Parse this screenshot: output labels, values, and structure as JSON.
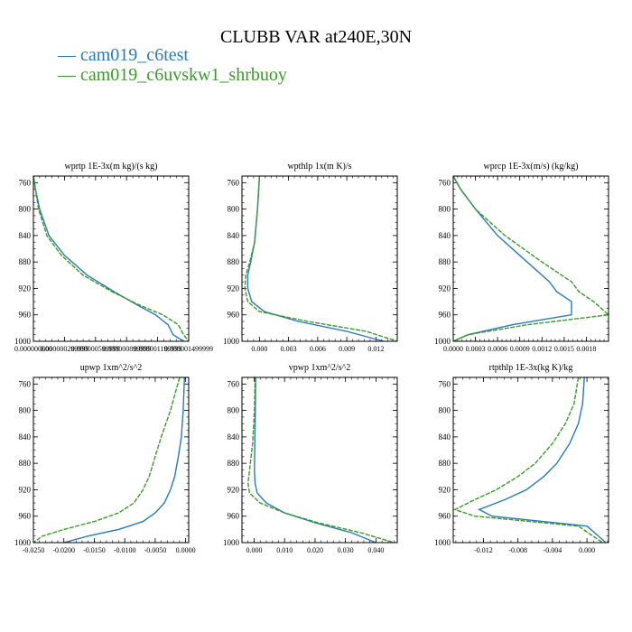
{
  "figure": {
    "title": "CLUBB VAR at240E,30N",
    "legend": [
      {
        "label": "cam019_c6test",
        "color": "#2a7ab9"
      },
      {
        "label": "cam019_c6uvskw1_shrbuoy",
        "color": "#3a9a28"
      }
    ]
  },
  "chart_data": [
    {
      "type": "line",
      "title": "wprtp  1E-3x(m kg)/(s kg)",
      "ylim": [
        1000,
        750
      ],
      "yticks": [
        760,
        800,
        840,
        880,
        920,
        960,
        1000
      ],
      "xlim": [
        0.0,
        1.5e-06
      ],
      "xticks": [
        0.0,
        3e-07,
        6e-07,
        9e-07,
        1.2e-06,
        1.5e-06
      ],
      "xtick_labels": [
        "0.000000000",
        "0.000000299999",
        "0.000000599999",
        "0.000000899999",
        "0.000001199999",
        "0.000001499999"
      ],
      "series": [
        {
          "name": "cam019_c6test",
          "x": [
            0.0,
            2e-08,
            6e-08,
            1.5e-07,
            3e-07,
            5.2e-07,
            7.8e-07,
            1e-06,
            1.18e-06,
            1.3e-06,
            1.35e-06,
            1.45e-06
          ],
          "y": [
            750,
            770,
            800,
            840,
            870,
            900,
            925,
            945,
            960,
            975,
            990,
            1000
          ]
        },
        {
          "name": "cam019_c6uvskw1_shrbuoy",
          "x": [
            0.0,
            2e-08,
            5e-08,
            1.3e-07,
            2.7e-07,
            4.8e-07,
            7.6e-07,
            1.02e-06,
            1.25e-06,
            1.4e-06,
            1.45e-06,
            1.5e-06
          ],
          "y": [
            750,
            770,
            800,
            840,
            870,
            900,
            925,
            945,
            960,
            975,
            990,
            1000
          ]
        }
      ]
    },
    {
      "type": "line",
      "title": "wpthlp  1x(m K)/s",
      "ylim": [
        1000,
        750
      ],
      "yticks": [
        760,
        800,
        840,
        880,
        920,
        960,
        1000
      ],
      "xlim": [
        -0.0018,
        0.0142
      ],
      "xticks": [
        0.0,
        0.003,
        0.006,
        0.009,
        0.012
      ],
      "xtick_labels": [
        "0.000",
        "0.003",
        "0.006",
        "0.009",
        "0.012"
      ],
      "series": [
        {
          "name": "cam019_c6test",
          "x": [
            0.0,
            -0.0002,
            -0.0005,
            -0.0009,
            -0.0012,
            -0.0012,
            -0.0008,
            0.0005,
            0.004,
            0.009,
            0.0128
          ],
          "y": [
            750,
            800,
            850,
            880,
            900,
            920,
            940,
            955,
            970,
            985,
            1000
          ]
        },
        {
          "name": "cam019_c6uvskw1_shrbuoy",
          "x": [
            0.0,
            -0.0002,
            -0.0005,
            -0.001,
            -0.0014,
            -0.0015,
            -0.0012,
            0.0,
            0.005,
            0.011,
            0.0142
          ],
          "y": [
            750,
            800,
            850,
            880,
            900,
            920,
            940,
            955,
            970,
            985,
            1000
          ]
        }
      ]
    },
    {
      "type": "line",
      "title": "wprcp  1E-3x(m/s) (kg/kg)",
      "ylim": [
        1000,
        750
      ],
      "yticks": [
        760,
        800,
        840,
        880,
        920,
        960,
        1000
      ],
      "xlim": [
        0.0,
        0.0021
      ],
      "xticks": [
        0.0,
        0.0003,
        0.0006,
        0.0009,
        0.0012,
        0.0015,
        0.0018
      ],
      "xtick_labels": [
        "0.0000",
        "0.0003",
        "0.0006",
        "0.0009",
        "0.0012",
        "0.0015",
        "0.0018"
      ],
      "series": [
        {
          "name": "cam019_c6test",
          "x": [
            0.0,
            0.0001,
            0.0003,
            0.0006,
            0.001,
            0.0013,
            0.0014,
            0.0016,
            0.0016,
            0.0008,
            0.0002,
            0.0
          ],
          "y": [
            750,
            770,
            800,
            840,
            880,
            910,
            925,
            940,
            960,
            975,
            990,
            1000
          ]
        },
        {
          "name": "cam019_c6uvskw1_shrbuoy",
          "x": [
            0.0,
            0.0001,
            0.0003,
            0.0007,
            0.0012,
            0.0016,
            0.0017,
            0.0019,
            0.0021,
            0.001,
            0.0002,
            0.0
          ],
          "y": [
            750,
            770,
            800,
            840,
            880,
            910,
            925,
            940,
            960,
            975,
            990,
            1000
          ]
        }
      ]
    },
    {
      "type": "line",
      "title": "upwp  1xm^2/s^2",
      "ylim": [
        1000,
        750
      ],
      "yticks": [
        760,
        800,
        840,
        880,
        920,
        960,
        1000
      ],
      "xlim": [
        -0.025,
        0.0005
      ],
      "xticks": [
        -0.025,
        -0.02,
        -0.015,
        -0.01,
        -0.005,
        0.0
      ],
      "xtick_labels": [
        "-0.0250",
        "-0.0200",
        "-0.0150",
        "-0.0100",
        "-0.0050",
        "0.0000"
      ],
      "series": [
        {
          "name": "cam019_c6test",
          "x": [
            -0.0002,
            -0.0004,
            -0.0007,
            -0.0012,
            -0.0018,
            -0.0025,
            -0.0035,
            -0.005,
            -0.007,
            -0.011,
            -0.016,
            -0.02
          ],
          "y": [
            750,
            800,
            840,
            870,
            900,
            920,
            940,
            955,
            968,
            980,
            990,
            1000
          ]
        },
        {
          "name": "cam019_c6uvskw1_shrbuoy",
          "x": [
            -0.001,
            -0.0025,
            -0.004,
            -0.005,
            -0.006,
            -0.007,
            -0.0085,
            -0.011,
            -0.015,
            -0.02,
            -0.0235,
            -0.025
          ],
          "y": [
            750,
            800,
            840,
            870,
            900,
            920,
            940,
            955,
            968,
            980,
            990,
            1000
          ]
        }
      ]
    },
    {
      "type": "line",
      "title": "vpwp  1xm^2/s^2",
      "ylim": [
        1000,
        750
      ],
      "yticks": [
        760,
        800,
        840,
        880,
        920,
        960,
        1000
      ],
      "xlim": [
        -0.004,
        0.047
      ],
      "xticks": [
        0.0,
        0.01,
        0.02,
        0.03,
        0.04
      ],
      "xtick_labels": [
        "0.000",
        "0.010",
        "0.020",
        "0.030",
        "0.040"
      ],
      "series": [
        {
          "name": "cam019_c6test",
          "x": [
            0.0005,
            0.0004,
            0.0002,
            0.0001,
            0.0003,
            0.001,
            0.004,
            0.01,
            0.02,
            0.032,
            0.04
          ],
          "y": [
            750,
            800,
            850,
            890,
            910,
            925,
            940,
            955,
            970,
            985,
            1000
          ]
        },
        {
          "name": "cam019_c6uvskw1_shrbuoy",
          "x": [
            0.0003,
            0.0001,
            -0.0005,
            -0.0015,
            -0.002,
            -0.0015,
            0.002,
            0.01,
            0.021,
            0.035,
            0.046
          ],
          "y": [
            750,
            800,
            850,
            890,
            910,
            925,
            940,
            955,
            970,
            985,
            1000
          ]
        }
      ]
    },
    {
      "type": "line",
      "title": "rtpthlp  1E-3x(kg K)/kg",
      "ylim": [
        1000,
        750
      ],
      "yticks": [
        760,
        800,
        840,
        880,
        920,
        960,
        1000
      ],
      "xlim": [
        -0.0155,
        0.0025
      ],
      "xticks": [
        -0.012,
        -0.008,
        -0.004,
        0.0
      ],
      "xtick_labels": [
        "-0.012",
        "-0.008",
        "-0.004",
        "0.000"
      ],
      "series": [
        {
          "name": "cam019_c6test",
          "x": [
            -0.0003,
            -0.0005,
            -0.001,
            -0.002,
            -0.0035,
            -0.005,
            -0.007,
            -0.0095,
            -0.0125,
            -0.011,
            0.0,
            0.0022
          ],
          "y": [
            750,
            790,
            820,
            850,
            880,
            900,
            920,
            935,
            950,
            960,
            975,
            1000
          ]
        },
        {
          "name": "cam019_c6uvskw1_shrbuoy",
          "x": [
            -0.001,
            -0.0015,
            -0.0025,
            -0.004,
            -0.006,
            -0.008,
            -0.0105,
            -0.013,
            -0.0153,
            -0.013,
            -0.001,
            0.0018
          ],
          "y": [
            750,
            790,
            820,
            850,
            880,
            900,
            920,
            935,
            950,
            960,
            975,
            1000
          ]
        }
      ]
    }
  ]
}
